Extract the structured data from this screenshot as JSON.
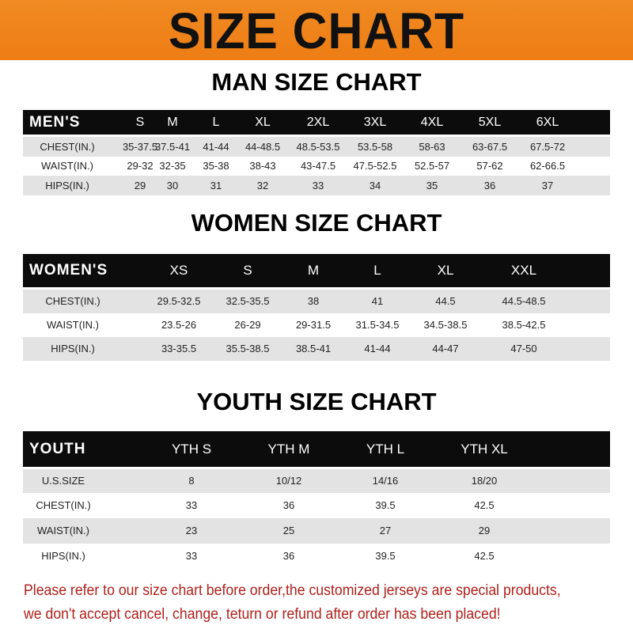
{
  "banner_title": "SIZE CHART",
  "men": {
    "title": "MAN SIZE CHART",
    "header": [
      "MEN'S",
      "S",
      "M",
      "L",
      "XL",
      "2XL",
      "3XL",
      "4XL",
      "5XL",
      "6XL"
    ],
    "rows": [
      [
        "CHEST(IN.)",
        "35-37.5",
        "37.5-41",
        "41-44",
        "44-48.5",
        "48.5-53.5",
        "53.5-58",
        "58-63",
        "63-67.5",
        "67.5-72"
      ],
      [
        "WAIST(IN.)",
        "29-32",
        "32-35",
        "35-38",
        "38-43",
        "43-47.5",
        "47.5-52.5",
        "52.5-57",
        "57-62",
        "62-66.5"
      ],
      [
        "HIPS(IN.)",
        "29",
        "30",
        "31",
        "32",
        "33",
        "34",
        "35",
        "36",
        "37"
      ]
    ]
  },
  "women": {
    "title": "WOMEN SIZE CHART",
    "header": [
      "WOMEN'S",
      "XS",
      "S",
      "M",
      "L",
      "XL",
      "XXL"
    ],
    "rows": [
      [
        "CHEST(IN.)",
        "29.5-32.5",
        "32.5-35.5",
        "38",
        "41",
        "44.5",
        "44.5-48.5"
      ],
      [
        "WAIST(IN.)",
        "23.5-26",
        "26-29",
        "29-31.5",
        "31.5-34.5",
        "34.5-38.5",
        "38.5-42.5"
      ],
      [
        "HIPS(IN.)",
        "33-35.5",
        "35.5-38.5",
        "38.5-41",
        "41-44",
        "44-47",
        "47-50"
      ]
    ]
  },
  "youth": {
    "title": "YOUTH SIZE CHART",
    "header": [
      "YOUTH",
      "YTH S",
      "YTH M",
      "YTH L",
      "YTH XL"
    ],
    "rows": [
      [
        "U.S.SIZE",
        "8",
        "10/12",
        "14/16",
        "18/20"
      ],
      [
        "CHEST(IN.)",
        "33",
        "36",
        "39.5",
        "42.5"
      ],
      [
        "WAIST(IN.)",
        "23",
        "25",
        "27",
        "29"
      ],
      [
        "HIPS(IN.)",
        "33",
        "36",
        "39.5",
        "42.5"
      ]
    ]
  },
  "note": {
    "line1": "Please refer to our size chart before order,the customized jerseys are special products,",
    "line2": "we don't accept cancel, change, teturn or refund after order has been placed!"
  },
  "colors": {
    "banner": "#ef8218",
    "header_row": "#0c0c0c",
    "note_text": "#b0201a"
  }
}
